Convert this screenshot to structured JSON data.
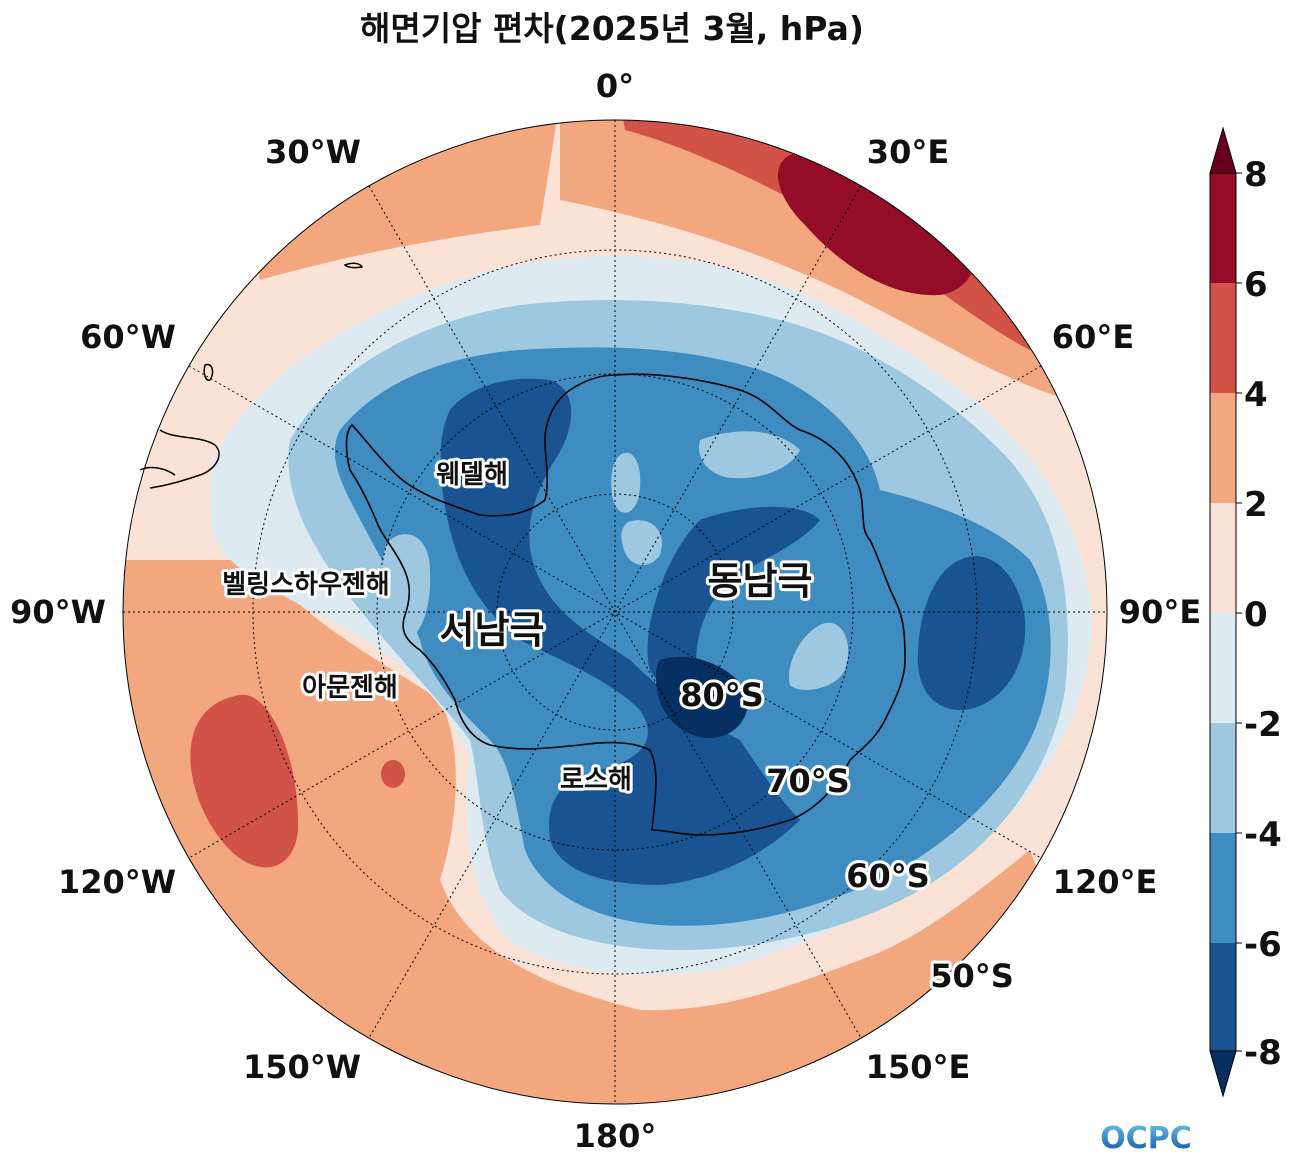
{
  "title": "해면기압 편차(2025년 3월, hPa)",
  "longitude_labels": {
    "lon_0": "0°",
    "lon_30E": "30°E",
    "lon_60E": "60°E",
    "lon_90E": "90°E",
    "lon_120E": "120°E",
    "lon_150E": "150°E",
    "lon_180": "180°",
    "lon_150W": "150°W",
    "lon_120W": "120°W",
    "lon_90W": "90°W",
    "lon_60W": "60°W",
    "lon_30W": "30°W"
  },
  "latitude_labels": {
    "lat_80S": "80°S",
    "lat_70S": "70°S",
    "lat_60S": "60°S",
    "lat_50S": "50°S"
  },
  "region_labels": {
    "east_antarctica": "동남극",
    "west_antarctica": "서남극",
    "weddell_sea": "웨델해",
    "bellingshausen_sea": "벨링스하우젠해",
    "amundsen_sea": "아문젠해",
    "ross_sea": "로스해"
  },
  "colorbar": {
    "ticks": [
      "8",
      "6",
      "4",
      "2",
      "0",
      "-2",
      "-4",
      "-6",
      "-8"
    ],
    "colors": {
      "above_8": "#67001f",
      "6_to_8": "#940d28",
      "4_to_6": "#d15347",
      "2_to_4": "#f3a77f",
      "0_to_2": "#fae3d6",
      "m2_to_0": "#deeaf2",
      "m4_to_m2": "#9dc8df",
      "m6_to_m4": "#3f8cc1",
      "m8_to_m6": "#1a5392",
      "below_m8": "#072f62"
    }
  },
  "logo": "OCPC"
}
